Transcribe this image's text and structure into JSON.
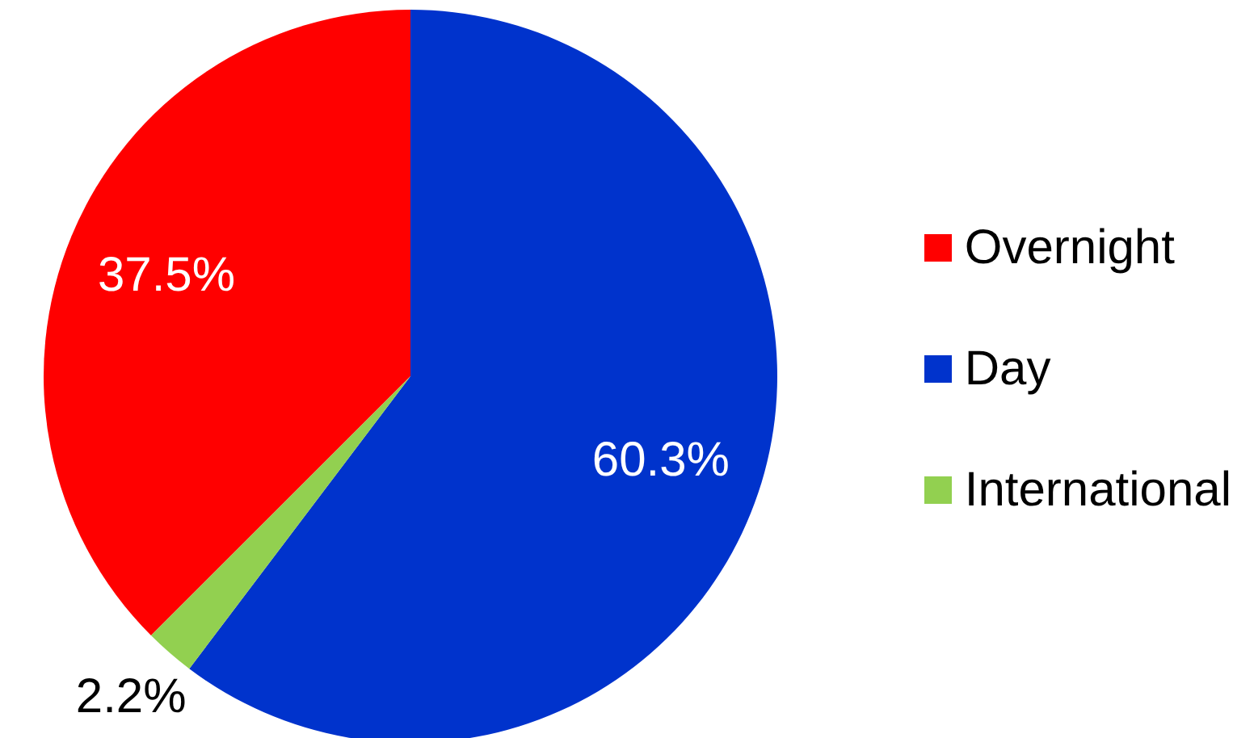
{
  "chart_data": {
    "type": "pie",
    "categories": [
      "Overnight",
      "Day",
      "International"
    ],
    "values": [
      37.5,
      60.3,
      2.2
    ],
    "colors": [
      "#ff0000",
      "#0033cc",
      "#92d050"
    ],
    "value_labels": [
      "37.5%",
      "60.3%",
      "2.2%"
    ],
    "legend": "right"
  }
}
